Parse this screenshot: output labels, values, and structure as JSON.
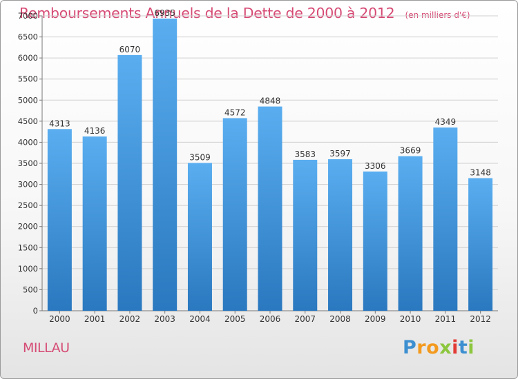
{
  "title": "Remboursements Annuels de la Dette de 2000 à 2012",
  "subtitle": "(en milliers d'€)",
  "city": "MILLAU",
  "logo_text": "Proxiti",
  "colors": {
    "title": "#d64a74",
    "bar_top": "#5aaef0",
    "bar_bottom": "#2a78bf",
    "grid": "#cfcfcf"
  },
  "chart_data": {
    "type": "bar",
    "title": "Remboursements Annuels de la Dette de 2000 à 2012",
    "subtitle": "(en milliers d'€)",
    "categories": [
      "2000",
      "2001",
      "2002",
      "2003",
      "2004",
      "2005",
      "2006",
      "2007",
      "2008",
      "2009",
      "2010",
      "2011",
      "2012"
    ],
    "values": [
      4313,
      4136,
      6070,
      6935,
      3509,
      4572,
      4848,
      3583,
      3597,
      3306,
      3669,
      4349,
      3148
    ],
    "ylim": [
      0,
      7000
    ],
    "yticks": [
      0,
      500,
      1000,
      1500,
      2000,
      2500,
      3000,
      3500,
      4000,
      4500,
      5000,
      5500,
      6000,
      6500,
      7000
    ],
    "grid": true,
    "legend": false
  }
}
